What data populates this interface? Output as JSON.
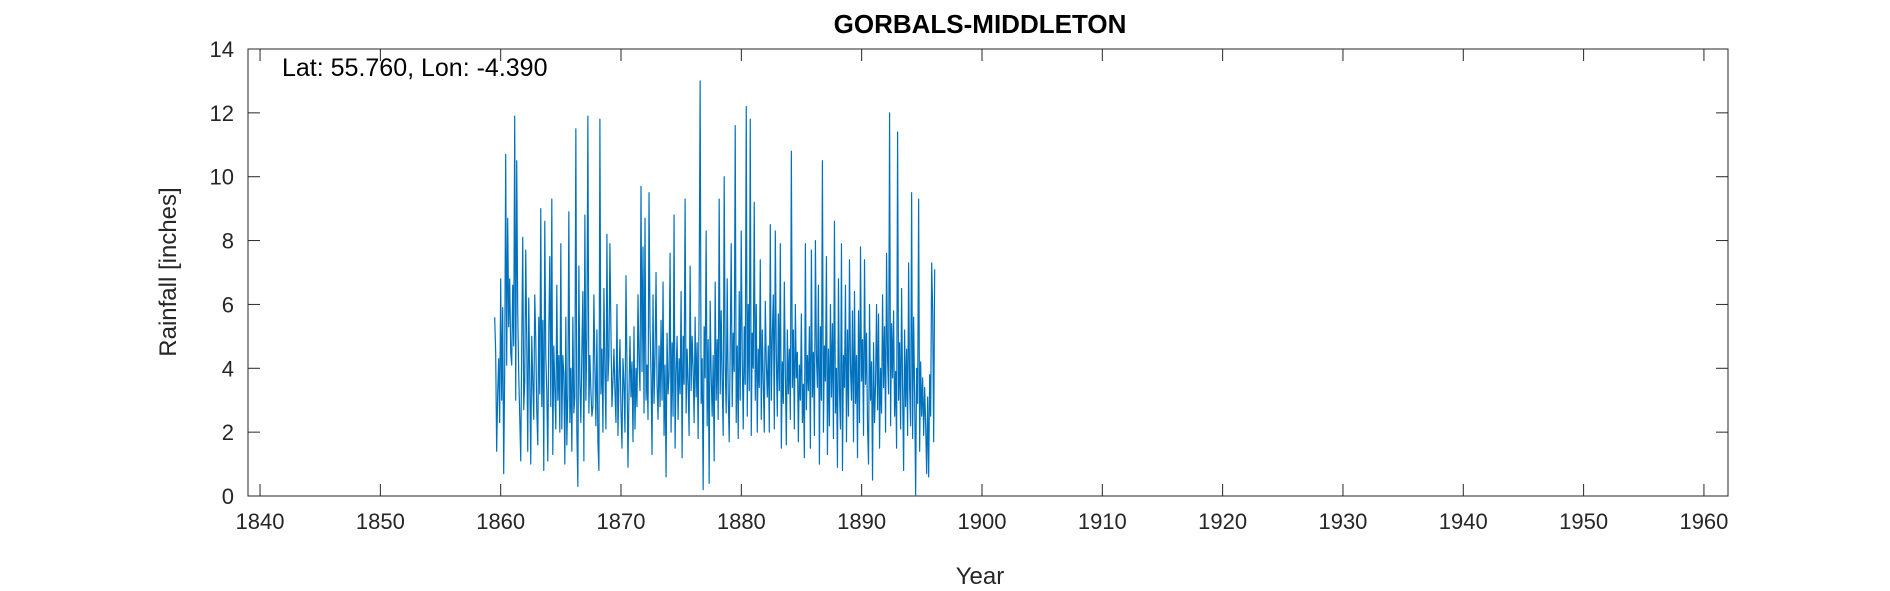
{
  "chart_data": {
    "type": "line",
    "title": "GORBALS-MIDDLETON",
    "annotation": "Lat: 55.760, Lon: -4.390",
    "xlabel": "Year",
    "ylabel": "Rainfall [inches]",
    "xlim": [
      1839,
      1962
    ],
    "ylim": [
      0,
      14
    ],
    "xticks": [
      1840,
      1850,
      1860,
      1870,
      1880,
      1890,
      1900,
      1910,
      1920,
      1930,
      1940,
      1950,
      1960
    ],
    "yticks": [
      0,
      2,
      4,
      6,
      8,
      10,
      12,
      14
    ],
    "grid": false,
    "line_color": "#0072BD",
    "series": [
      {
        "x_start": 1859.5,
        "x_step": 0.0833,
        "values": [
          5.6,
          4.5,
          1.4,
          3.2,
          4.3,
          2.3,
          6.8,
          3.0,
          5.9,
          0.7,
          3.9,
          10.7,
          4.1,
          8.7,
          5.3,
          6.8,
          4.5,
          4.1,
          6.6,
          4.7,
          11.9,
          3.0,
          10.5,
          5.8,
          3.8,
          2.5,
          1.1,
          4.7,
          8.1,
          2.7,
          3.6,
          7.7,
          4.9,
          1.4,
          6.2,
          3.7,
          1.0,
          5.0,
          3.6,
          2.4,
          6.3,
          4.9,
          2.7,
          1.6,
          5.6,
          3.2,
          9.0,
          2.8,
          5.5,
          0.8,
          8.6,
          4.4,
          3.3,
          1.1,
          5.1,
          7.5,
          2.8,
          9.3,
          1.3,
          4.7,
          3.4,
          2.1,
          6.6,
          3.0,
          4.4,
          2.0,
          7.9,
          2.1,
          4.4,
          3.8,
          1.0,
          5.6,
          1.6,
          3.2,
          8.9,
          2.3,
          4.0,
          1.4,
          5.6,
          2.6,
          3.1,
          11.5,
          2.0,
          0.3,
          7.2,
          3.6,
          2.3,
          4.6,
          6.4,
          1.1,
          8.8,
          3.0,
          5.0,
          11.9,
          2.6,
          4.4,
          3.3,
          2.5,
          2.8,
          6.3,
          4.0,
          2.2,
          5.2,
          1.7,
          0.8,
          11.8,
          3.2,
          4.6,
          2.0,
          6.5,
          3.9,
          2.1,
          8.2,
          3.6,
          4.4,
          7.9,
          5.2,
          2.8,
          3.6,
          4.6,
          3.3,
          2.3,
          6.0,
          1.9,
          3.6,
          4.9,
          2.7,
          1.5,
          4.3,
          3.5,
          2.0,
          6.9,
          4.1,
          0.9,
          3.2,
          5.0,
          3.1,
          4.2,
          1.7,
          5.3,
          2.1,
          4.0,
          2.8,
          6.3,
          4.2,
          3.3,
          9.7,
          3.9,
          7.8,
          2.6,
          8.7,
          3.0,
          4.1,
          2.4,
          9.5,
          5.3,
          3.8,
          1.3,
          6.3,
          2.9,
          4.4,
          7.0,
          3.5,
          2.4,
          4.7,
          2.8,
          5.5,
          3.0,
          6.7,
          1.9,
          4.1,
          0.6,
          5.1,
          3.2,
          3.8,
          7.6,
          2.0,
          4.8,
          2.5,
          8.8,
          1.5,
          3.9,
          5.0,
          2.4,
          4.3,
          3.2,
          6.4,
          1.2,
          5.0,
          3.5,
          9.3,
          2.6,
          4.6,
          3.5,
          1.9,
          7.2,
          3.3,
          5.0,
          4.0,
          2.3,
          5.6,
          3.1,
          4.8,
          1.8,
          6.2,
          13.0,
          2.9,
          4.3,
          0.2,
          5.3,
          3.7,
          8.3,
          2.2,
          4.9,
          0.4,
          6.1,
          3.8,
          2.5,
          4.4,
          1.1,
          6.7,
          3.0,
          4.9,
          2.4,
          9.3,
          3.2,
          5.8,
          3.5,
          1.9,
          10.0,
          4.1,
          2.6,
          6.8,
          3.2,
          1.7,
          4.6,
          7.9,
          2.8,
          5.1,
          3.9,
          11.6,
          2.3,
          4.7,
          1.8,
          6.4,
          3.0,
          8.3,
          4.3,
          2.1,
          5.3,
          3.5,
          12.2,
          2.5,
          6.0,
          3.3,
          11.8,
          1.9,
          5.1,
          4.0,
          9.2,
          3.0,
          6.0,
          2.0,
          4.6,
          3.4,
          7.4,
          2.4,
          5.2,
          3.6,
          2.0,
          6.1,
          4.2,
          3.1,
          4.7,
          2.0,
          8.5,
          3.0,
          5.0,
          6.3,
          2.1,
          8.3,
          4.4,
          2.5,
          5.7,
          3.3,
          7.9,
          1.5,
          4.2,
          2.9,
          6.7,
          3.8,
          1.6,
          5.2,
          3.2,
          4.6,
          2.4,
          10.8,
          3.4,
          5.2,
          2.1,
          6.0,
          3.7,
          4.5,
          1.7,
          4.1,
          3.0,
          5.7,
          2.3,
          3.5,
          1.2,
          7.9,
          2.7,
          4.4,
          3.3,
          5.3,
          1.5,
          7.7,
          3.1,
          4.5,
          1.9,
          8.0,
          4.4,
          3.4,
          6.6,
          1.0,
          5.3,
          3.0,
          10.5,
          2.0,
          4.7,
          3.6,
          7.5,
          1.3,
          4.6,
          2.2,
          6.0,
          3.1,
          5.4,
          1.8,
          8.6,
          2.6,
          4.0,
          0.9,
          6.8,
          3.3,
          2.1,
          7.9,
          0.8,
          4.4,
          3.4,
          6.6,
          1.7,
          5.2,
          2.5,
          7.4,
          4.0,
          3.0,
          5.8,
          1.7,
          6.4,
          2.9,
          4.4,
          1.2,
          5.8,
          2.3,
          7.8,
          3.6,
          4.9,
          1.9,
          7.4,
          3.5,
          5.1,
          2.2,
          1.0,
          6.0,
          3.0,
          4.2,
          0.5,
          4.8,
          2.3,
          3.5,
          6.0,
          2.7,
          5.7,
          1.5,
          4.0,
          2.6,
          6.3,
          3.4,
          5.3,
          2.0,
          7.6,
          4.3,
          3.2,
          12.0,
          2.2,
          5.4,
          3.7,
          5.8,
          2.5,
          3.9,
          1.5,
          11.4,
          3.0,
          4.8,
          2.1,
          6.5,
          3.3,
          0.8,
          5.2,
          2.8,
          4.6,
          1.9,
          7.3,
          3.4,
          2.2,
          9.5,
          1.8,
          5.6,
          3.2,
          0.0,
          4.0,
          2.9,
          9.3,
          1.4,
          4.2,
          2.5,
          3.7,
          1.9,
          3.4,
          2.2,
          0.7,
          3.1,
          0.6,
          3.8,
          2.5,
          7.3,
          5.8,
          1.7,
          7.1
        ]
      }
    ]
  }
}
